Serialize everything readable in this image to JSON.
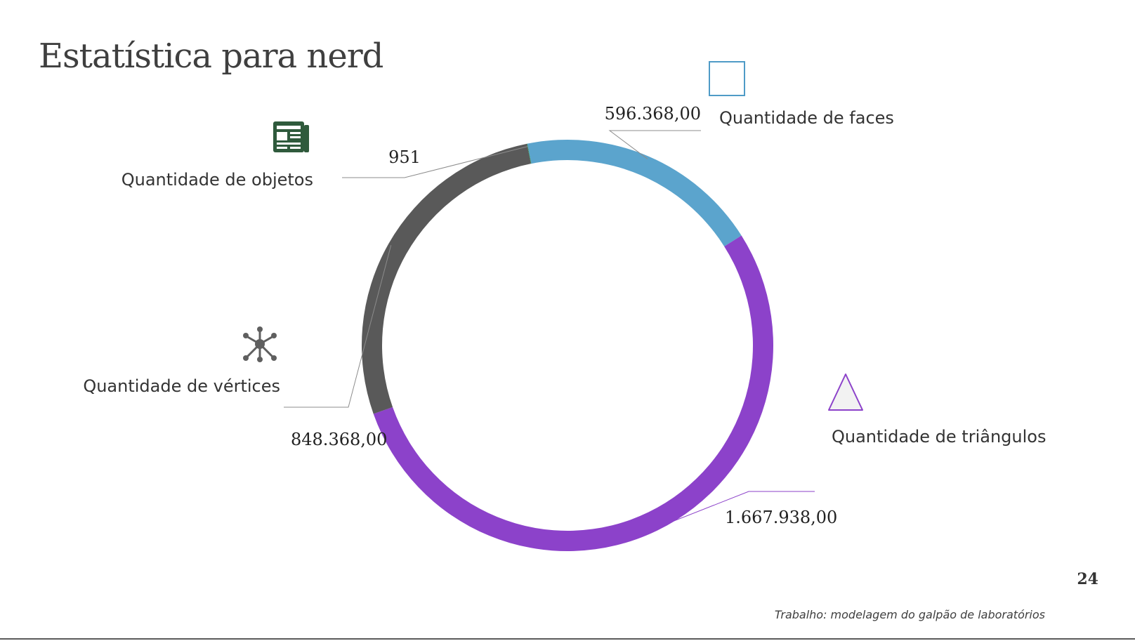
{
  "slide": {
    "title": "Estatística para nerd",
    "page_number": "24",
    "footer": "Trabalho: modelagem do galpão de laboratórios"
  },
  "chart_data": {
    "type": "pie",
    "style": "donut",
    "start_angle_deg": -11.25,
    "categories": [
      "Quantidade de faces",
      "Quantidade de triângulos",
      "Quantidade de vértices",
      "Quantidade de objetos"
    ],
    "values": [
      596368,
      1667938,
      848368,
      951
    ],
    "value_labels": [
      "596.368,00",
      "1.667.938,00",
      "848.368,00",
      "951"
    ],
    "colors": [
      "#5ba4cd",
      "#8c42ca",
      "#595959",
      "#23964f"
    ],
    "icons": [
      "square-outline-icon",
      "triangle-icon",
      "network-hub-icon",
      "newspaper-icon"
    ]
  }
}
